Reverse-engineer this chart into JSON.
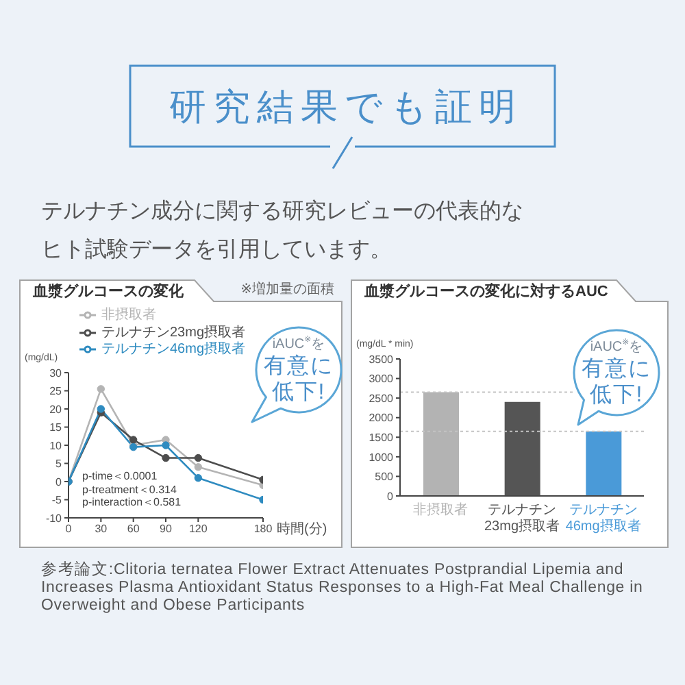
{
  "chart_data": [
    {
      "type": "other",
      "title": "研究結果でも証明",
      "subtitle": "テルナチン成分に関する研究レビューの代表的なヒト試験データを引用しています。"
    },
    {
      "type": "line",
      "title": "血漿グルコースの変化",
      "xlabel": "時間(分)",
      "ylabel": "(mg/dL)",
      "annotations": [
        "※増加量の面積",
        "p-time＜0.0001",
        "p-treatment＜0.314",
        "p-interaction＜0.581",
        "iAUC$^{※}$を",
        "有意に低下!"
      ],
      "x": [
        0,
        30,
        60,
        90,
        120,
        180
      ],
      "series": [
        {
          "name": "非摂取者",
          "color": "#b4b4b4",
          "values": [
            0,
            25.5,
            10,
            11.5,
            4,
            -1
          ]
        },
        {
          "name": "テルナチン23mg摂取者",
          "color": "#4d4d4d",
          "values": [
            0,
            19,
            11.5,
            6.5,
            6.5,
            0.5
          ]
        },
        {
          "name": "テルナチン46mg摂取者",
          "color": "#2e8bc0",
          "values": [
            0,
            20,
            9.5,
            10,
            1,
            -5
          ]
        }
      ],
      "xlim": [
        0,
        180
      ],
      "xticks": [
        0,
        30,
        60,
        90,
        120,
        180
      ],
      "ylim": [
        -10,
        30
      ],
      "yticks": [
        -10,
        -5,
        0,
        5,
        10,
        15,
        20,
        25,
        30
      ],
      "legend": "top",
      "marker": "circle",
      "line_style": "solid"
    },
    {
      "type": "bar",
      "title": "血漿グルコースの変化に対するAUC",
      "ylabel": "(mg/dL * min)",
      "annotations": [
        "iAUC$^{※}$を",
        "有意に低下!"
      ],
      "categories": [
        "非摂取者",
        "テルナチン\n23mg摂取者",
        "テルナチン\n46mg摂取者"
      ],
      "values": [
        2650,
        2400,
        1650
      ],
      "colors": [
        "#b3b3b3",
        "#555555",
        "#4a9ad8"
      ],
      "ylim": [
        0,
        3500
      ],
      "yticks": [
        0,
        500,
        1000,
        1500,
        2000,
        2500,
        3000,
        3500
      ],
      "ref_lines": [
        {
          "axis": "y",
          "value": 2650,
          "color": "#c4c4c4",
          "line_style": "dotted"
        },
        {
          "axis": "y",
          "value": 1650,
          "color": "#c4c4c4",
          "line_style": "dotted"
        }
      ]
    },
    {
      "type": "other",
      "annotations": [
        "参考論文:Clitoria ternatea Flower Extract Attenuates Postprandial Lipemia and Increases Plasma Antioxidant Status Responses to a High-Fat Meal Challenge in Overweight and Obese Participants"
      ]
    }
  ]
}
